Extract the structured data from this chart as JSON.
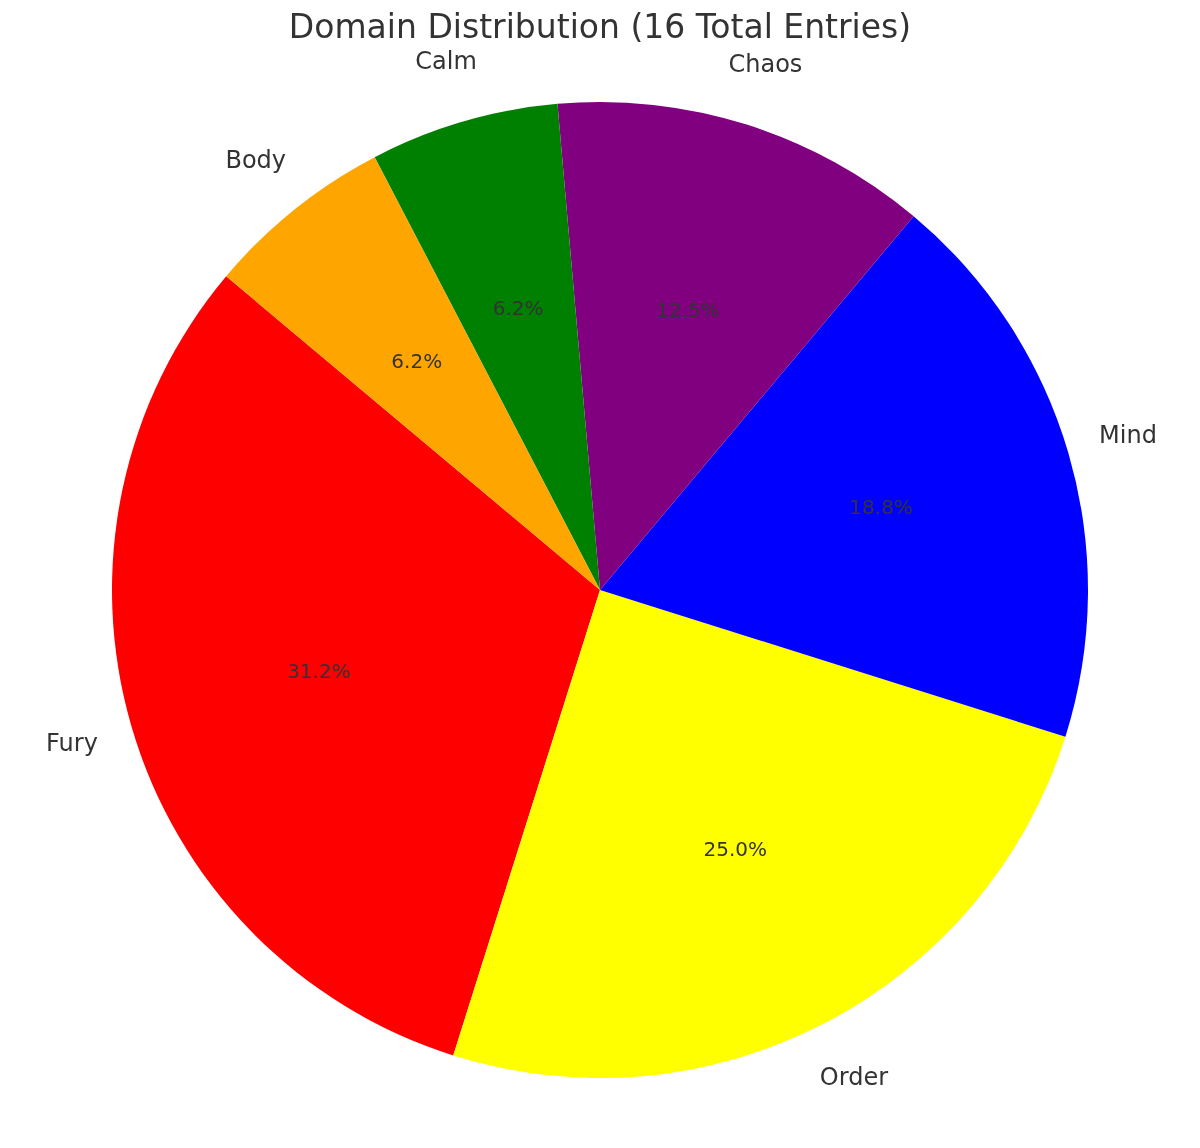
{
  "chart_data": {
    "type": "pie",
    "title": "Domain Distribution (16 Total Entries)",
    "categories": [
      "Fury",
      "Order",
      "Mind",
      "Chaos",
      "Calm",
      "Body"
    ],
    "values": [
      31.25,
      25,
      18.75,
      12.5,
      6.25,
      6.25
    ],
    "value_labels": [
      "31.2%",
      "25.0%",
      "18.8%",
      "12.5%",
      "6.2%",
      "6.2%"
    ],
    "colors": [
      "#ff0000",
      "#ffff00",
      "#0000ff",
      "#800080",
      "#008000",
      "#ffa500"
    ],
    "legend": false
  }
}
